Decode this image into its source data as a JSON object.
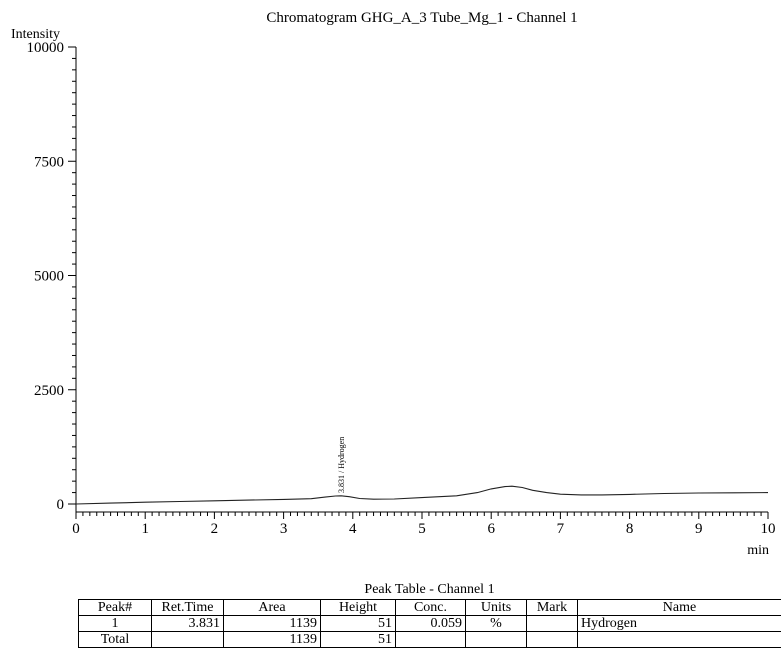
{
  "chart_data": {
    "type": "line",
    "title": "Chromatogram GHG_A_3 Tube_Mg_1 - Channel 1",
    "ylabel": "Intensity",
    "xlabel": "min",
    "xlim": [
      0,
      10
    ],
    "ylim": [
      0,
      10000
    ],
    "x_ticks": [
      "0",
      "1",
      "2",
      "3",
      "4",
      "5",
      "6",
      "7",
      "8",
      "9",
      "10"
    ],
    "y_ticks": [
      "0",
      "2500",
      "5000",
      "7500",
      "10000"
    ],
    "series": [
      {
        "x": [
          0,
          0.5,
          1,
          1.5,
          2,
          2.5,
          3,
          3.4,
          3.6,
          3.75,
          3.831,
          3.95,
          4.1,
          4.3,
          4.6,
          5,
          5.5,
          5.8,
          6.0,
          6.2,
          6.3,
          6.45,
          6.6,
          6.8,
          7.0,
          7.3,
          7.6,
          8,
          8.5,
          9,
          9.5,
          10
        ],
        "y": [
          0,
          20,
          40,
          55,
          70,
          85,
          100,
          115,
          150,
          175,
          180,
          160,
          120,
          105,
          110,
          140,
          180,
          250,
          330,
          380,
          390,
          360,
          300,
          250,
          215,
          200,
          200,
          210,
          230,
          240,
          245,
          250
        ]
      }
    ],
    "annotations": [
      {
        "x": 3.831,
        "text": "3.831 / Hydrogen"
      }
    ],
    "grid": false,
    "legend": "none"
  },
  "peak_table": {
    "title": "Peak Table - Channel 1",
    "headers": [
      "Peak#",
      "Ret.Time",
      "Area",
      "Height",
      "Conc.",
      "Units",
      "Mark",
      "Name"
    ],
    "rows": [
      [
        "1",
        "3.831",
        "1139",
        "51",
        "0.059",
        "%",
        "",
        "Hydrogen"
      ]
    ],
    "total": [
      "Total",
      "",
      "1139",
      "51",
      "",
      "",
      "",
      ""
    ]
  }
}
